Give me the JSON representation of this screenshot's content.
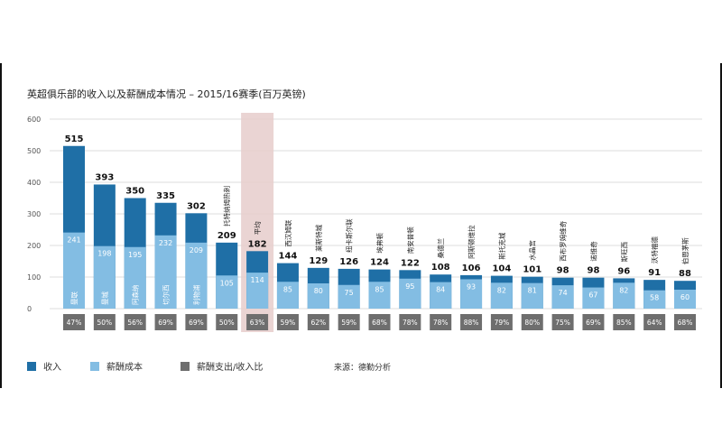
{
  "title": "英超俱乐部的收入以及薪酬成本情况 – 2015/16赛季(百万英镑)",
  "source": "来源：德勤分析",
  "legend": {
    "revenue": "收入",
    "wage": "薪酬成本",
    "ratio": "薪酬支出/收入比"
  },
  "colors": {
    "revenue": "#1f6fa6",
    "wage": "#83bde3",
    "ratio": "#6e6e6e",
    "average_highlight": "#e6cccb"
  },
  "chart_data": {
    "type": "bar",
    "title": "英超俱乐部的收入以及薪酬成本情况 – 2015/16赛季(百万英镑)",
    "ylim": [
      0,
      600
    ],
    "yticks": [
      0,
      100,
      200,
      300,
      400,
      500,
      600
    ],
    "grid": true,
    "legend_position": "bottom",
    "categories": [
      "曼联",
      "曼城",
      "阿森纳",
      "切尔西",
      "利物浦",
      "托特纳姆热刺",
      "平均",
      "西汉姆联",
      "莱斯特城",
      "纽卡斯尔联",
      "埃弗顿",
      "南安普顿",
      "桑德兰",
      "阿斯顿维拉",
      "斯托克城",
      "水晶宫",
      "西布罗姆维奇",
      "诺维奇",
      "斯旺西",
      "沃特福德",
      "伯恩茅斯"
    ],
    "series": [
      {
        "name": "收入",
        "values": [
          515,
          393,
          350,
          335,
          302,
          209,
          182,
          144,
          129,
          126,
          124,
          122,
          108,
          106,
          104,
          101,
          98,
          98,
          96,
          91,
          88
        ]
      },
      {
        "name": "薪酬成本",
        "values": [
          241,
          198,
          195,
          232,
          209,
          105,
          114,
          85,
          80,
          75,
          85,
          95,
          84,
          93,
          82,
          81,
          74,
          67,
          82,
          58,
          60
        ]
      },
      {
        "name": "薪酬支出/收入比",
        "values": [
          "47%",
          "50%",
          "56%",
          "69%",
          "69%",
          "50%",
          "63%",
          "59%",
          "62%",
          "59%",
          "68%",
          "78%",
          "78%",
          "88%",
          "79%",
          "80%",
          "75%",
          "69%",
          "85%",
          "64%",
          "68%"
        ]
      }
    ],
    "highlight_category": "平均"
  }
}
